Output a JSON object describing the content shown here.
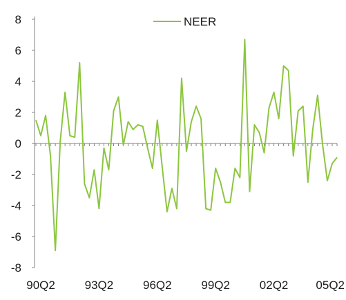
{
  "chart_data": {
    "type": "line",
    "title": "",
    "xlabel": "",
    "ylabel": "",
    "ylim": [
      -8,
      8
    ],
    "y_ticks": [
      8,
      6,
      4,
      2,
      0,
      -2,
      -4,
      -6,
      -8
    ],
    "x_tick_labels": [
      "90Q2",
      "93Q2",
      "96Q2",
      "99Q2",
      "02Q2",
      "05Q2"
    ],
    "x_tick_positions": [
      "90Q2",
      "93Q2",
      "96Q2",
      "99Q2",
      "02Q2",
      "05Q2"
    ],
    "x": [
      "90Q1",
      "90Q2",
      "90Q3",
      "90Q4",
      "91Q1",
      "91Q2",
      "91Q3",
      "91Q4",
      "92Q1",
      "92Q2",
      "92Q3",
      "92Q4",
      "93Q1",
      "93Q2",
      "93Q3",
      "93Q4",
      "94Q1",
      "94Q2",
      "94Q3",
      "94Q4",
      "95Q1",
      "95Q2",
      "95Q3",
      "95Q4",
      "96Q1",
      "96Q2",
      "96Q3",
      "96Q4",
      "97Q1",
      "97Q2",
      "97Q3",
      "97Q4",
      "98Q1",
      "98Q2",
      "98Q3",
      "98Q4",
      "99Q1",
      "99Q2",
      "99Q3",
      "99Q4",
      "00Q1",
      "00Q2",
      "00Q3",
      "00Q4",
      "01Q1",
      "01Q2",
      "01Q3",
      "01Q4",
      "02Q1",
      "02Q2",
      "02Q3",
      "02Q4",
      "03Q1",
      "03Q2",
      "03Q3",
      "03Q4",
      "04Q1",
      "04Q2",
      "04Q3",
      "04Q4",
      "05Q1",
      "05Q2",
      "05Q3"
    ],
    "series": [
      {
        "name": "NEER",
        "color": "#8cc63f",
        "values": [
          1.5,
          0.5,
          1.8,
          -0.8,
          -6.9,
          0.1,
          3.3,
          0.5,
          0.4,
          5.2,
          -2.6,
          -3.5,
          -1.7,
          -4.2,
          -0.3,
          -1.7,
          2.1,
          3.0,
          -0.1,
          1.4,
          0.9,
          1.2,
          1.1,
          -0.3,
          -1.6,
          1.5,
          -1.5,
          -4.4,
          -2.9,
          -4.2,
          4.2,
          -0.5,
          1.4,
          2.4,
          1.6,
          -4.2,
          -4.3,
          -1.6,
          -2.5,
          -3.8,
          -3.8,
          -1.6,
          -2.2,
          6.7,
          -3.1,
          1.2,
          0.7,
          -0.6,
          2.3,
          3.3,
          1.6,
          5.0,
          4.7,
          -0.8,
          2.1,
          2.4,
          -2.5,
          0.9,
          3.1,
          0.0,
          -2.4,
          -1.3,
          -0.9
        ]
      }
    ],
    "legend": {
      "position": "top-center",
      "entries": [
        "NEER"
      ]
    },
    "grid": false
  }
}
